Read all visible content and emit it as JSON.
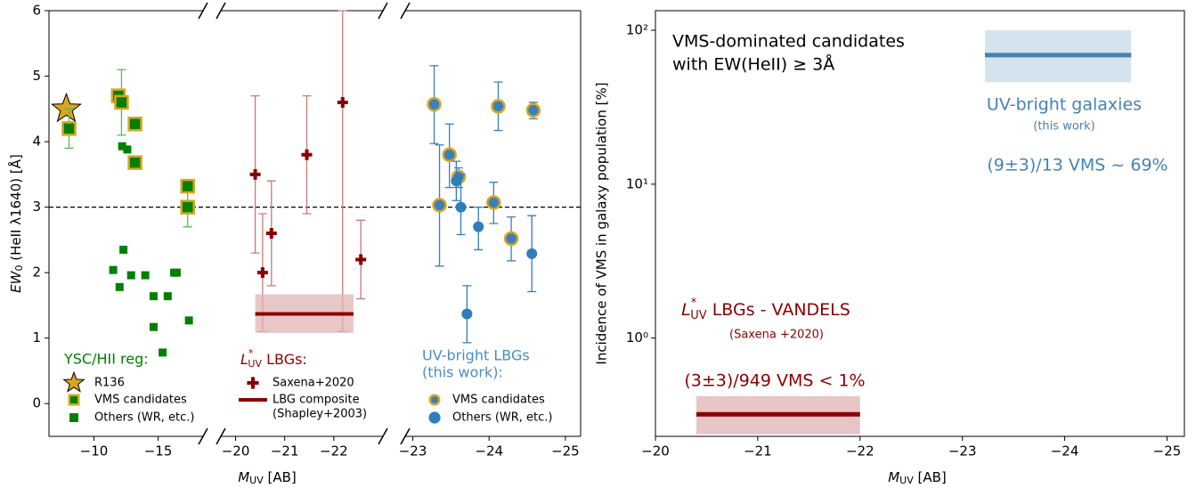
{
  "chart_data": [
    {
      "type": "scatter",
      "ylabel": {
        "main": "EW",
        "sub": "0",
        "rest": " (HeII λ1640) [Å]"
      },
      "xlabel": {
        "main": "M",
        "sub": "UV",
        "rest": " [AB]"
      },
      "ylim": [
        -0.5,
        6
      ],
      "yticks": [
        0,
        1,
        2,
        3,
        4,
        5,
        6
      ],
      "hline": 3,
      "panels": [
        {
          "xlim": [
            -6.5,
            -18.5
          ],
          "xticks": [
            {
              "value": -10,
              "label": "−10"
            },
            {
              "value": -15,
              "label": "−15"
            }
          ],
          "legend_title": "YSC/HII reg:",
          "title_color": "#008000",
          "series": [
            {
              "name": "R136",
              "marker": "star",
              "color": "#daa520",
              "x": [
                -7.85
              ],
              "values": [
                4.5
              ]
            },
            {
              "name": "VMS candidates",
              "marker": "vms_square",
              "color": "#008000",
              "edge": "#daa520",
              "err_color": "#5cb85c",
              "x": [
                -8.06,
                -11.9,
                -12.15,
                -13.2,
                -13.2,
                -17.3,
                -17.3
              ],
              "values": [
                4.2,
                4.7,
                4.6,
                4.27,
                3.68,
                3.32,
                3.0
              ],
              "err_low": [
                3.9,
                null,
                4.1,
                null,
                null,
                null,
                2.7
              ],
              "err_high": [
                4.5,
                null,
                5.1,
                null,
                null,
                null,
                3.3
              ]
            },
            {
              "name": "Others (WR, etc.)",
              "marker": "square",
              "color": "#008000",
              "x": [
                -11.5,
                -12.2,
                -12.6,
                -12.3,
                -12.0,
                -12.9,
                -14.0,
                -14.65,
                -15.75,
                -14.65,
                -15.35,
                -16.25,
                -16.45,
                -17.4
              ],
              "values": [
                2.04,
                3.93,
                3.88,
                2.35,
                1.78,
                1.96,
                1.96,
                1.64,
                1.64,
                1.17,
                0.78,
                2.0,
                2.0,
                1.27
              ]
            }
          ]
        },
        {
          "xlim": [
            -19.7,
            -23.0
          ],
          "xticks": [
            {
              "value": -20,
              "label": "−20"
            },
            {
              "value": -21,
              "label": "−21"
            },
            {
              "value": -22,
              "label": "−22"
            }
          ],
          "legend_title": {
            "main": "L",
            "sup": "*",
            "sub": "UV",
            "rest": " LBGs:"
          },
          "title_color": "#8b0000",
          "series": [
            {
              "name": "Saxena+2020",
              "marker": "plus",
              "color": "#8b0000",
              "err_color": "#c97a7a",
              "x": [
                -20.4,
                -20.55,
                -20.73,
                -21.45,
                -22.18,
                -22.55
              ],
              "values": [
                3.5,
                2.0,
                2.6,
                3.8,
                4.6,
                2.2
              ],
              "err_low": [
                2.3,
                1.1,
                1.8,
                2.9,
                1.1,
                1.6
              ],
              "err_high": [
                4.7,
                2.9,
                3.4,
                4.7,
                6.0,
                2.8
              ]
            },
            {
              "name": "LBG composite",
              "note": "(Shapley+2003)",
              "marker": "band",
              "color": "#8b0000",
              "band_color": "#dfb4b4",
              "x": [
                -20.4,
                -22.4
              ],
              "values": [
                1.37,
                1.37
              ],
              "band": [
                1.08,
                1.67
              ]
            }
          ]
        },
        {
          "xlim": [
            -22.9,
            -25.2
          ],
          "xticks": [
            {
              "value": -23,
              "label": "−23"
            },
            {
              "value": -24,
              "label": "−24"
            },
            {
              "value": -25,
              "label": "−25"
            }
          ],
          "legend_title": "UV-bright LBGs",
          "legend_subtitle": "(this work):",
          "title_color": "#4a8cc4",
          "series": [
            {
              "name": "VMS candidates",
              "marker": "vms_circle",
              "color": "#3a7fbd",
              "edge": "#daa520",
              "err_color": "#3a7fbd",
              "x": [
                -23.28,
                -23.35,
                -23.48,
                -23.6,
                -24.06,
                -24.12,
                -24.29,
                -24.58
              ],
              "values": [
                4.57,
                3.03,
                3.8,
                3.46,
                3.07,
                4.54,
                2.52,
                4.48
              ],
              "err_low": [
                3.97,
                2.1,
                3.3,
                3.3,
                2.75,
                4.17,
                2.18,
                4.35
              ],
              "err_high": [
                5.16,
                3.95,
                4.27,
                3.6,
                3.38,
                4.91,
                2.85,
                4.6
              ]
            },
            {
              "name": "Others (WR, etc.)",
              "marker": "circle",
              "color": "#2f7dbb",
              "err_color": "#2f7dbb",
              "x": [
                -23.57,
                -23.63,
                -23.71,
                -23.86,
                -24.56
              ],
              "values": [
                3.4,
                3.0,
                1.37,
                2.7,
                2.29
              ],
              "err_low": [
                3.1,
                2.58,
                0.93,
                2.35,
                1.71
              ],
              "err_high": [
                3.7,
                3.5,
                1.8,
                3.0,
                2.87
              ]
            }
          ]
        }
      ]
    },
    {
      "type": "range",
      "xlabel": {
        "main": "M",
        "sub": "UV",
        "rest": " [AB]"
      },
      "ylabel": "Incidence of VMS in galaxy population  [%]",
      "note": [
        "VMS-dominated candidates",
        "with EW(HeII) ≥ 3Å"
      ],
      "xlim": [
        -20,
        -25.17
      ],
      "xticks": [
        {
          "value": -20,
          "label": "−20"
        },
        {
          "value": -21,
          "label": "−21"
        },
        {
          "value": -22,
          "label": "−22"
        },
        {
          "value": -23,
          "label": "−23"
        },
        {
          "value": -24,
          "label": "−24"
        },
        {
          "value": -25,
          "label": "−25"
        }
      ],
      "log": true,
      "ylim": [
        0.23,
        134
      ],
      "yticks": [
        {
          "value": 1,
          "label": "10⁰"
        },
        {
          "value": 10,
          "label": "10¹"
        },
        {
          "value": 100,
          "label": "10²"
        }
      ],
      "series": [
        {
          "name": "UV-bright galaxies",
          "subname": "(this work)",
          "label": "(9±3)/13 VMS ~ 69%",
          "color": "#4682b4",
          "band_color": "#d5e3ef",
          "x": [
            -23.22,
            -24.65
          ],
          "values": [
            69,
            69
          ],
          "band": [
            46,
            100
          ]
        },
        {
          "name": {
            "main": "L",
            "sup": "*",
            "sub": "UV",
            "rest": " LBGs - VANDELS"
          },
          "subname": "(Saxena +2020)",
          "label": "(3±3)/949 VMS < 1%",
          "color": "#8b0000",
          "band_color": "#e8c6c6",
          "x": [
            -20.4,
            -22.0
          ],
          "values": [
            0.32,
            0.32
          ],
          "band": [
            0.237,
            0.42
          ]
        }
      ]
    }
  ]
}
